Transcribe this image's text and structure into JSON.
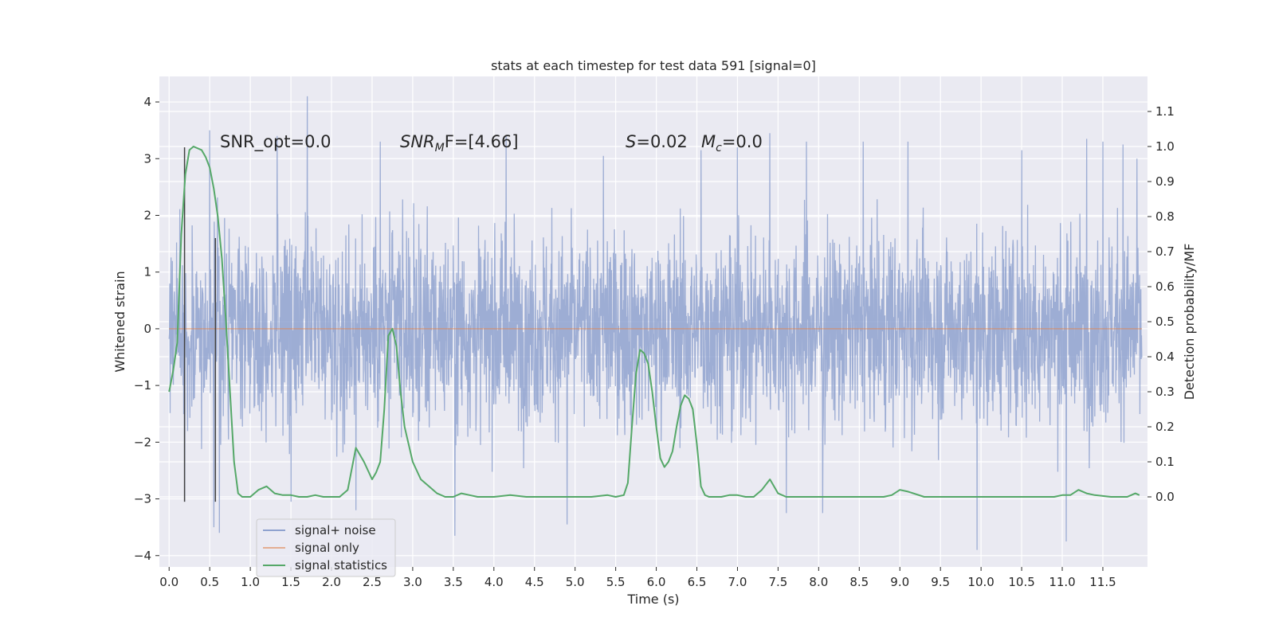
{
  "chart_data": {
    "type": "line",
    "title": "stats at each timestep for test data 591 [signal=0]",
    "xlabel": "Time (s)",
    "ylabel": "Whitened strain",
    "y2label": "Detection probability/MF",
    "xlim": [
      -0.12,
      12.05
    ],
    "ylim": [
      -4.2,
      4.45
    ],
    "y2lim": [
      -0.2,
      1.2
    ],
    "xticks": [
      0.0,
      0.5,
      1.0,
      1.5,
      2.0,
      2.5,
      3.0,
      3.5,
      4.0,
      4.5,
      5.0,
      5.5,
      6.0,
      6.5,
      7.0,
      7.5,
      8.0,
      8.5,
      9.0,
      9.5,
      10.0,
      10.5,
      11.0,
      11.5
    ],
    "xtick_labels": [
      "0.0",
      "0.5",
      "1.0",
      "1.5",
      "2.0",
      "2.5",
      "3.0",
      "3.5",
      "4.0",
      "4.5",
      "5.0",
      "5.5",
      "6.0",
      "6.5",
      "7.0",
      "7.5",
      "8.0",
      "8.5",
      "9.0",
      "9.5",
      "10.0",
      "10.5",
      "11.0",
      "11.5"
    ],
    "yticks": [
      -4,
      -3,
      -2,
      -1,
      0,
      1,
      2,
      3,
      4
    ],
    "ytick_labels": [
      "−4",
      "−3",
      "−2",
      "−1",
      "0",
      "1",
      "2",
      "3",
      "4"
    ],
    "y2ticks": [
      0.0,
      0.1,
      0.2,
      0.3,
      0.4,
      0.5,
      0.6,
      0.7,
      0.8,
      0.9,
      1.0,
      1.1
    ],
    "y2tick_labels": [
      "0.0",
      "0.1",
      "0.2",
      "0.3",
      "0.4",
      "0.5",
      "0.6",
      "0.7",
      "0.8",
      "0.9",
      "1.0",
      "1.1"
    ],
    "grid": true,
    "legend_position": "lower-left",
    "series": [
      {
        "name": "signal+ noise",
        "color": "#8fa2cf",
        "axis": "left",
        "description_values": "dense whitened noise, x from 0.0 to 11.98 s, amplitude mostly within -2.5..2.5 with spikes",
        "spikes": [
          [
            0.19,
            3.2
          ],
          [
            0.19,
            -3.05
          ],
          [
            0.5,
            3.5
          ],
          [
            0.55,
            -3.5
          ],
          [
            0.62,
            -3.6
          ],
          [
            1.33,
            3.4
          ],
          [
            1.5,
            -3.05
          ],
          [
            1.7,
            4.1
          ],
          [
            2.3,
            -3.2
          ],
          [
            2.6,
            3.3
          ],
          [
            3.52,
            -3.65
          ],
          [
            4.15,
            3.4
          ],
          [
            4.9,
            -3.45
          ],
          [
            5.35,
            3.05
          ],
          [
            6.55,
            3.15
          ],
          [
            7.0,
            3.2
          ],
          [
            7.4,
            3.45
          ],
          [
            7.6,
            -3.25
          ],
          [
            7.85,
            3.3
          ],
          [
            8.05,
            -3.25
          ],
          [
            8.55,
            3.3
          ],
          [
            9.1,
            3.3
          ],
          [
            9.95,
            -3.9
          ],
          [
            10.5,
            3.15
          ],
          [
            11.05,
            -3.75
          ],
          [
            11.3,
            3.35
          ],
          [
            11.5,
            3.3
          ],
          [
            11.75,
            3.25
          ],
          [
            11.92,
            3.0
          ]
        ]
      },
      {
        "name": "signal only",
        "color": "#dd8452",
        "axis": "left",
        "x": [
          0.0,
          11.98
        ],
        "values": [
          0.0,
          0.0
        ]
      },
      {
        "name": "signal statistics",
        "color": "#55a868",
        "axis": "right",
        "x": [
          0.0,
          0.05,
          0.1,
          0.15,
          0.2,
          0.25,
          0.3,
          0.35,
          0.4,
          0.45,
          0.5,
          0.55,
          0.6,
          0.65,
          0.7,
          0.75,
          0.8,
          0.85,
          0.9,
          1.0,
          1.1,
          1.2,
          1.3,
          1.4,
          1.5,
          1.6,
          1.7,
          1.8,
          1.9,
          2.0,
          2.1,
          2.2,
          2.3,
          2.4,
          2.5,
          2.55,
          2.6,
          2.65,
          2.7,
          2.75,
          2.8,
          2.85,
          2.9,
          3.0,
          3.1,
          3.2,
          3.3,
          3.4,
          3.5,
          3.6,
          3.7,
          3.8,
          3.9,
          4.0,
          4.2,
          4.4,
          4.6,
          4.8,
          5.0,
          5.2,
          5.4,
          5.5,
          5.6,
          5.65,
          5.7,
          5.75,
          5.8,
          5.85,
          5.9,
          5.95,
          6.0,
          6.05,
          6.1,
          6.15,
          6.2,
          6.25,
          6.3,
          6.35,
          6.4,
          6.45,
          6.5,
          6.55,
          6.6,
          6.65,
          6.7,
          6.8,
          6.9,
          7.0,
          7.1,
          7.2,
          7.3,
          7.4,
          7.5,
          7.6,
          7.8,
          8.0,
          8.2,
          8.4,
          8.6,
          8.8,
          8.9,
          9.0,
          9.1,
          9.3,
          9.5,
          9.7,
          9.9,
          10.1,
          10.3,
          10.5,
          10.7,
          10.9,
          11.0,
          11.1,
          11.2,
          11.3,
          11.4,
          11.6,
          11.8,
          11.85,
          11.9,
          11.95
        ],
        "values": [
          0.3,
          0.36,
          0.44,
          0.75,
          0.92,
          0.99,
          1.0,
          0.995,
          0.99,
          0.97,
          0.94,
          0.88,
          0.8,
          0.68,
          0.5,
          0.3,
          0.1,
          0.01,
          0.0,
          0.0,
          0.02,
          0.03,
          0.01,
          0.005,
          0.005,
          0.0,
          0.0,
          0.005,
          0.0,
          0.0,
          0.0,
          0.02,
          0.14,
          0.1,
          0.05,
          0.07,
          0.1,
          0.25,
          0.46,
          0.48,
          0.43,
          0.3,
          0.2,
          0.1,
          0.05,
          0.03,
          0.01,
          0.0,
          0.0,
          0.01,
          0.005,
          0.0,
          0.0,
          0.0,
          0.005,
          0.0,
          0.0,
          0.0,
          0.0,
          0.0,
          0.005,
          0.0,
          0.005,
          0.04,
          0.2,
          0.35,
          0.42,
          0.41,
          0.38,
          0.3,
          0.2,
          0.11,
          0.085,
          0.1,
          0.13,
          0.2,
          0.26,
          0.29,
          0.28,
          0.25,
          0.15,
          0.03,
          0.005,
          0.0,
          0.0,
          0.0,
          0.005,
          0.005,
          0.0,
          0.0,
          0.02,
          0.05,
          0.01,
          0.0,
          0.0,
          0.0,
          0.0,
          0.0,
          0.0,
          0.0,
          0.005,
          0.02,
          0.015,
          0.0,
          0.0,
          0.0,
          0.0,
          0.0,
          0.0,
          0.0,
          0.0,
          0.0,
          0.005,
          0.005,
          0.02,
          0.01,
          0.005,
          0.0,
          0.0,
          0.005,
          0.01,
          0.005
        ]
      }
    ],
    "vlines": [
      {
        "x": 0.19,
        "y_from": -3.05,
        "y_to": 3.2,
        "color": "#404040"
      },
      {
        "x": 0.57,
        "y_from": -3.05,
        "y_to": 1.6,
        "color": "#404040"
      }
    ],
    "annotations": [
      {
        "id": "snr-opt",
        "text": "SNR_opt=0.0",
        "x": 0.22,
        "y": 3.3
      },
      {
        "id": "snr-mf",
        "text_main": "SNR",
        "text_sub": "M",
        "text_rest": "F=[4.66]",
        "x": 2.6,
        "y": 3.3
      },
      {
        "id": "s-stat",
        "text_main": "S",
        "text_rest": "=0.02",
        "x": 5.6,
        "y": 3.3
      },
      {
        "id": "mc",
        "text_main": "M",
        "text_sub": "c",
        "text_rest": "=0.0",
        "x": 6.6,
        "y": 3.3
      }
    ],
    "legend": {
      "entries": [
        {
          "label": "signal+ noise",
          "color": "#8fa2cf"
        },
        {
          "label": "signal only",
          "color": "#dd8452"
        },
        {
          "label": "signal statistics",
          "color": "#55a868"
        }
      ]
    }
  }
}
